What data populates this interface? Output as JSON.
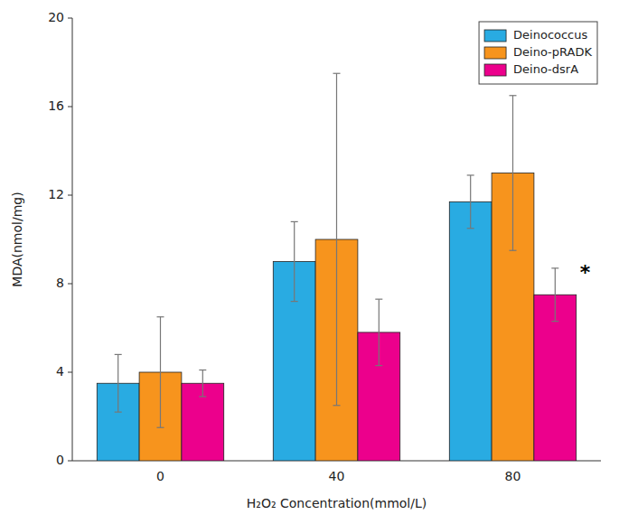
{
  "chart_data": {
    "type": "bar",
    "categories": [
      "0",
      "40",
      "80"
    ],
    "series": [
      {
        "name": "Deinococcus",
        "color": "#29ABE2",
        "values": [
          3.5,
          9.0,
          11.7
        ],
        "errors": [
          1.3,
          1.8,
          1.2
        ]
      },
      {
        "name": "Deino-pRADK",
        "color": "#F7941D",
        "values": [
          4.0,
          10.0,
          13.0
        ],
        "errors": [
          2.5,
          7.5,
          3.5
        ]
      },
      {
        "name": "Deino-dsrA",
        "color": "#EC008C",
        "values": [
          3.5,
          5.8,
          7.5
        ],
        "errors": [
          0.6,
          1.5,
          1.2
        ]
      }
    ],
    "xlabel": "H₂O₂ Concentration(mmol/L)",
    "ylabel": "MDA(nmol/mg)",
    "ylim": [
      0,
      20
    ],
    "yticks": [
      0,
      4,
      8,
      12,
      16,
      20
    ],
    "annotations": [
      "*"
    ],
    "legend": "upper right",
    "grid": false
  }
}
